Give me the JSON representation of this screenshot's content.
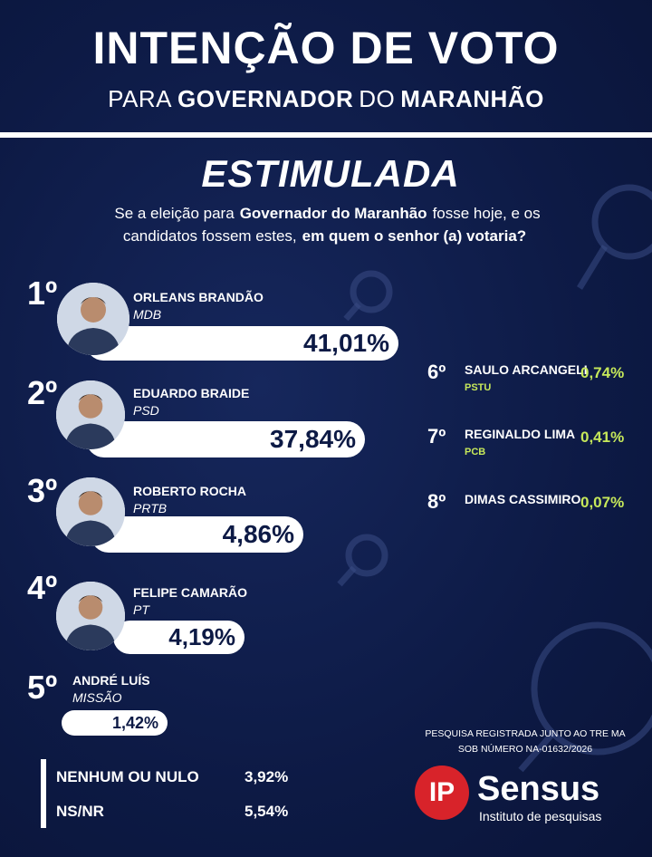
{
  "header": {
    "title": "INTENÇÃO DE VOTO",
    "subtitle": [
      {
        "text": "PARA",
        "bold": false
      },
      {
        "text": "GOVERNADOR",
        "bold": true
      },
      {
        "text": "DO",
        "bold": false
      },
      {
        "text": "MARANHÃO",
        "bold": true
      }
    ]
  },
  "section": "ESTIMULADA",
  "question": [
    {
      "text": "Se a eleição para",
      "bold": false
    },
    {
      "text": "Governador do Maranhão",
      "bold": true
    },
    {
      "text": "fosse hoje, e os candidatos fossem estes,",
      "bold": false
    },
    {
      "text": "em quem o senhor (a) votaria?",
      "bold": true
    }
  ],
  "candidates": [
    {
      "rank": "1º",
      "name": "ORLEANS BRANDÃO",
      "party": "MDB",
      "result": "41,01%"
    },
    {
      "rank": "2º",
      "name": "EDUARDO BRAIDE",
      "party": "PSD",
      "result": "37,84%"
    },
    {
      "rank": "3º",
      "name": "ROBERTO ROCHA",
      "party": "PRTB",
      "result": "4,86%"
    },
    {
      "rank": "4º",
      "name": "FELIPE CAMARÃO",
      "party": "PT",
      "result": "4,19%"
    },
    {
      "rank": "5º",
      "name": "ANDRÉ LUÍS",
      "party": "MISSÃO",
      "result": "1,42%"
    }
  ],
  "others": [
    {
      "rank": "6º",
      "name": "SAULO ARCANGELI",
      "party": "PSTU",
      "result": "0,74%"
    },
    {
      "rank": "7º",
      "name": "REGINALDO LIMA",
      "party": "PCB",
      "result": "0,41%"
    },
    {
      "rank": "8º",
      "name": "DIMAS CASSIMIRO",
      "result": "0,07%"
    }
  ],
  "summary": [
    {
      "label": "NENHUM OU NULO",
      "result": "3,92%"
    },
    {
      "label": "NS/NR",
      "result": "5,54%"
    }
  ],
  "note": [
    "PESQUISA REGISTRADA JUNTO AO TRE MA",
    "SOB NÚMERO NA-01632/2026"
  ],
  "logo": {
    "mark": "IP",
    "name": "Sensus",
    "tagline": "Instituto de pesquisas"
  }
}
